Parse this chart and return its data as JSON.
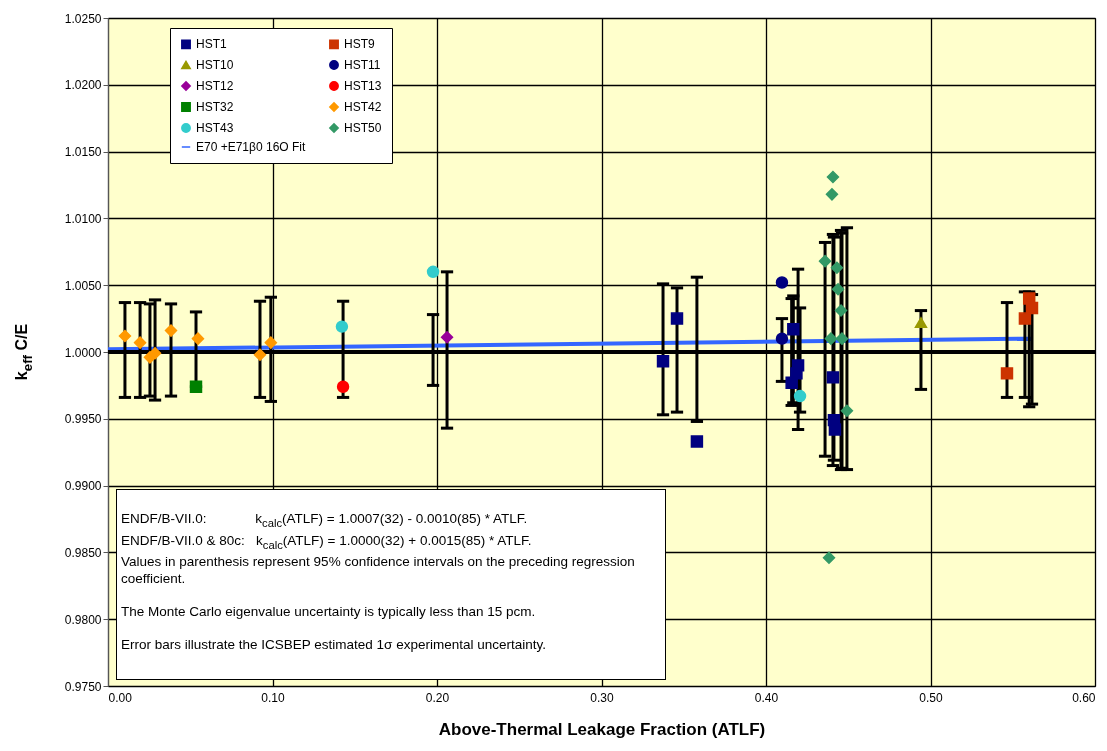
{
  "chart_data": {
    "type": "scatter",
    "xlabel": "Above-Thermal Leakage Fraction (ATLF)",
    "ylabel": "k$_{eff}$ C/E",
    "xlim": [
      0,
      0.6
    ],
    "xticks": [
      {
        "value": 0,
        "label": "0.00"
      },
      {
        "value": 0.1,
        "label": "0.10"
      },
      {
        "value": 0.2,
        "label": "0.20"
      },
      {
        "value": 0.3,
        "label": "0.30"
      },
      {
        "value": 0.4,
        "label": "0.40"
      },
      {
        "value": 0.5,
        "label": "0.50"
      },
      {
        "value": 0.6,
        "label": "0.60"
      }
    ],
    "ylim": [
      0.975,
      1.025
    ],
    "yticks": [
      {
        "value": 0.975,
        "label": "0.9750"
      },
      {
        "value": 0.98,
        "label": "0.9800"
      },
      {
        "value": 0.985,
        "label": "0.9850"
      },
      {
        "value": 0.99,
        "label": "0.9900"
      },
      {
        "value": 0.995,
        "label": "0.9950"
      },
      {
        "value": 1.0,
        "label": "1.0000"
      },
      {
        "value": 1.005,
        "label": "1.0050"
      },
      {
        "value": 1.01,
        "label": "1.0100"
      },
      {
        "value": 1.015,
        "label": "1.0150"
      },
      {
        "value": 1.02,
        "label": "1.0200"
      },
      {
        "value": 1.025,
        "label": "1.0250"
      }
    ],
    "grid": true,
    "legend": "top left",
    "ref_lines": [
      {
        "axis": "y",
        "value": 1.0,
        "color": "#000000"
      }
    ],
    "series": [
      {
        "name": "HST1",
        "type": "scatter",
        "marker": "square",
        "color": "#000080",
        "x": [
          0.3374,
          0.3459,
          0.358,
          0.4166,
          0.4195,
          0.4185,
          0.4156,
          0.4407,
          0.4413,
          0.4419
        ],
        "values": [
          0.9993,
          1.0025,
          0.9933,
          1.0017,
          0.999,
          0.9984,
          0.9977,
          0.9981,
          0.9949,
          0.9942
        ],
        "errors": [
          [
            0.9953,
            1.0051
          ],
          [
            0.9955,
            1.0048
          ],
          [
            0.9948,
            1.0056
          ],
          [
            0.9962,
            1.0042
          ],
          [
            0.9942,
            1.0062
          ],
          null,
          [
            0.996,
            1.004
          ],
          [
            0.9915,
            1.0088
          ],
          [
            0.9919,
            1.0086
          ],
          null
        ]
      },
      {
        "name": "HST9",
        "type": "scatter",
        "marker": "square",
        "color": "#cc3300",
        "x": [
          0.5465,
          0.5574,
          0.56,
          0.5617
        ],
        "values": [
          0.9984,
          1.0025,
          1.004,
          1.0033
        ],
        "errors": [
          [
            0.9966,
            1.0037
          ],
          [
            0.9966,
            1.0045
          ],
          [
            0.9959,
            1.0045
          ],
          [
            0.9961,
            1.0043
          ]
        ]
      },
      {
        "name": "HST10",
        "type": "scatter",
        "marker": "triangle",
        "color": "#999900",
        "x": [
          0.4942
        ],
        "values": [
          1.0022
        ],
        "errors": [
          [
            0.9972,
            1.0031
          ]
        ]
      },
      {
        "name": "HST11",
        "type": "scatter",
        "marker": "circle",
        "color": "#000080",
        "x": [
          0.4097,
          0.4097
        ],
        "values": [
          1.0052,
          1.001
        ],
        "errors": [
          null,
          [
            0.9978,
            1.0025
          ]
        ]
      },
      {
        "name": "HST12",
        "type": "scatter",
        "marker": "diamond",
        "color": "#990099",
        "x": [
          0.2061
        ],
        "values": [
          1.0011
        ],
        "errors": [
          [
            0.9943,
            1.006
          ]
        ]
      },
      {
        "name": "HST13",
        "type": "scatter",
        "marker": "circle",
        "color": "#ff0000",
        "x": [
          0.1429
        ],
        "values": [
          0.9974
        ],
        "errors": [
          [
            0.9966,
            1.0038
          ]
        ]
      },
      {
        "name": "HST32",
        "type": "scatter",
        "marker": "square",
        "color": "#008000",
        "x": [
          0.0535
        ],
        "values": [
          0.9974
        ],
        "errors": [
          [
            0.9974,
            1.003
          ]
        ]
      },
      {
        "name": "HST42",
        "type": "scatter",
        "marker": "diamond",
        "color": "#ff9900",
        "x": [
          0.0103,
          0.0195,
          0.0255,
          0.0286,
          0.0383,
          0.0547,
          0.0924,
          0.099
        ],
        "values": [
          1.0012,
          1.0007,
          0.9996,
          0.9999,
          1.0016,
          1.001,
          0.9998,
          1.0007
        ],
        "errors": [
          [
            0.9966,
            1.0037
          ],
          [
            0.9966,
            1.0037
          ],
          [
            0.9967,
            1.0036
          ],
          [
            0.9964,
            1.0039
          ],
          [
            0.9967,
            1.0036
          ],
          null,
          [
            0.9966,
            1.0038
          ],
          [
            0.9963,
            1.0041
          ]
        ]
      },
      {
        "name": "HST43",
        "type": "scatter",
        "marker": "circle",
        "color": "#33cccc",
        "x": [
          0.1422,
          0.1976,
          0.4207
        ],
        "values": [
          1.0019,
          1.006,
          0.9967
        ],
        "errors": [
          null,
          [
            0.9975,
            1.0028
          ],
          [
            0.9955,
            1.0033
          ]
        ]
      },
      {
        "name": "HST50",
        "type": "scatter",
        "marker": "diamond",
        "color": "#339966",
        "x": [
          0.4407,
          0.4401,
          0.4359,
          0.4431,
          0.4438,
          0.4456,
          0.4395,
          0.4462,
          0.4492,
          0.4383
        ],
        "values": [
          1.0131,
          1.0118,
          1.0068,
          1.0063,
          1.0047,
          1.0031,
          1.001,
          1.001,
          0.9956,
          0.9846
        ],
        "errors": [
          null,
          null,
          [
            0.9922,
            1.0082
          ],
          null,
          null,
          [
            0.9912,
            1.0091
          ],
          null,
          [
            0.9913,
            1.0089
          ],
          [
            0.9912,
            1.0093
          ],
          null
        ]
      },
      {
        "name": "E70 +E71β0 16O Fit",
        "type": "line",
        "marker": "none",
        "color": "#3366ff",
        "x": [
          0.0,
          0.5617
        ],
        "values": [
          1.0002,
          1.001
        ]
      }
    ],
    "annotations": [
      "ENDF/B-VII.0:             k$_{calc}$(ATLF) = 1.0007(32) - 0.0010(85) * ATLF.",
      "ENDF/B-VII.0 & 80c:   k$_{calc}$(ATLF) = 1.0000(32) + 0.0015(85) * ATLF.",
      "Values in parenthesis represent 95% confidence intervals on the preceding regression coefficient.",
      "The Monte Carlo eigenvalue uncertainty is typically less than 15 pcm.",
      "Error bars illustrate the ICSBEP estimated 1σ experimental uncertainty."
    ]
  }
}
